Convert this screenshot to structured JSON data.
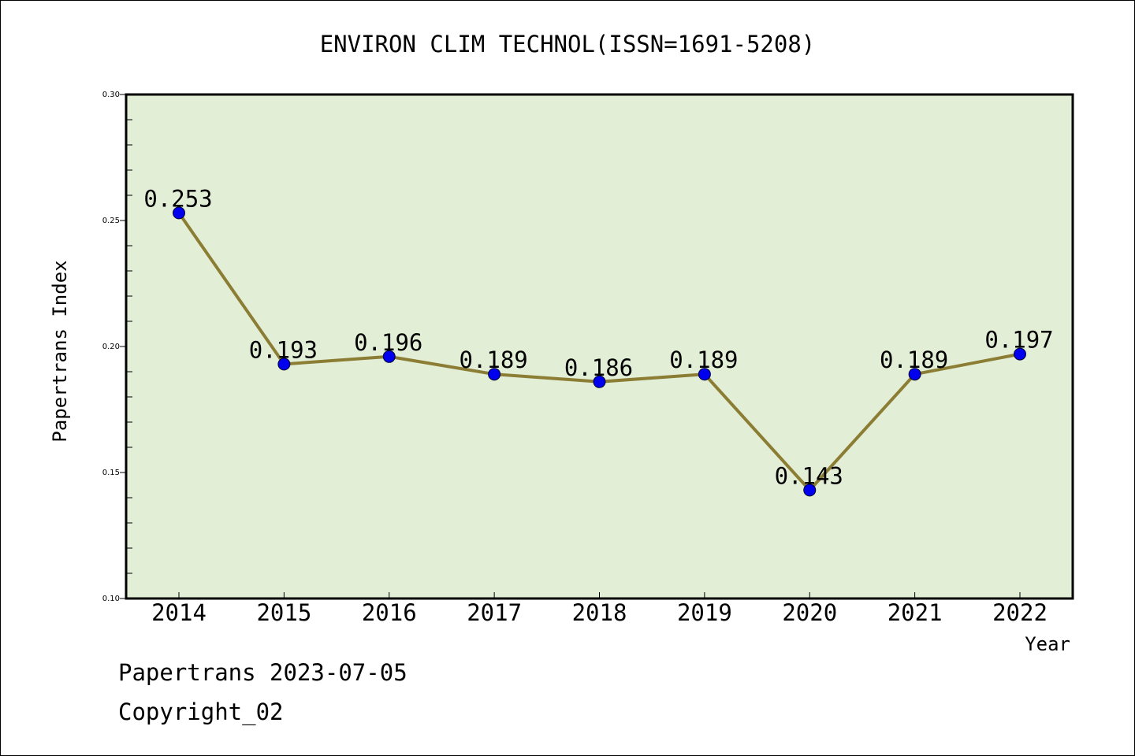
{
  "chart_data": {
    "type": "line",
    "title": "ENVIRON CLIM TECHNOL(ISSN=1691-5208)",
    "xlabel": "Year",
    "ylabel": "Papertrans Index",
    "categories": [
      "2014",
      "2015",
      "2016",
      "2017",
      "2018",
      "2019",
      "2020",
      "2021",
      "2022"
    ],
    "series": [
      {
        "values": [
          0.253,
          0.193,
          0.196,
          0.189,
          0.186,
          0.189,
          0.143,
          0.189,
          0.197
        ],
        "data_labels": [
          "0.253",
          "0.193",
          "0.196",
          "0.189",
          "0.186",
          "0.189",
          "0.143",
          "0.189",
          "0.197"
        ]
      }
    ],
    "ylim": [
      0.1,
      0.3
    ],
    "yticks": [
      0.1,
      0.15,
      0.2,
      0.25,
      0.3
    ],
    "ytick_labels": [
      "0.10",
      "0.15",
      "0.20",
      "0.25",
      "0.30"
    ],
    "legend": "none",
    "grid": false
  },
  "footer": {
    "line1": "Papertrans 2023-07-05",
    "line2": "Copyright_02"
  },
  "colors": {
    "plot_background": "#e2efd6",
    "line": "#8c7d35",
    "marker": "#0000ee",
    "axis": "#000000"
  }
}
